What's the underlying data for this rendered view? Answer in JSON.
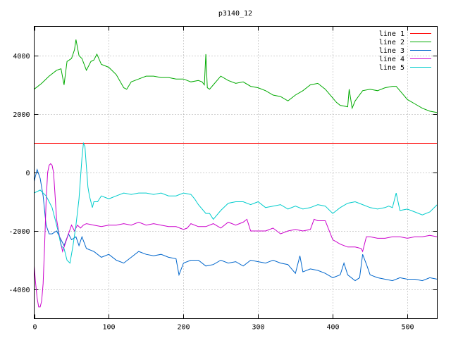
{
  "chart_data": {
    "type": "line",
    "title": "p3140_12",
    "xlabel": "",
    "ylabel": "",
    "xlim": [
      0,
      540
    ],
    "ylim": [
      -5000,
      5000
    ],
    "x_ticks": [
      0,
      100,
      200,
      300,
      400,
      500
    ],
    "y_ticks": [
      -4000,
      -2000,
      0,
      2000,
      4000
    ],
    "grid": true,
    "legend_position": "top-right",
    "series": [
      {
        "name": "line 1",
        "color": "#ff0000",
        "x": [
          0,
          540
        ],
        "y": [
          1000,
          1000
        ]
      },
      {
        "name": "line 2",
        "color": "#00aa00",
        "x": [
          0,
          10,
          20,
          30,
          36,
          40,
          44,
          50,
          54,
          56,
          60,
          64,
          70,
          76,
          80,
          84,
          90,
          100,
          110,
          120,
          124,
          130,
          140,
          150,
          160,
          170,
          180,
          190,
          200,
          210,
          220,
          225,
          228,
          230,
          232,
          235,
          240,
          250,
          260,
          270,
          280,
          290,
          300,
          310,
          320,
          330,
          340,
          350,
          360,
          370,
          380,
          390,
          400,
          405,
          410,
          420,
          422,
          426,
          430,
          440,
          450,
          460,
          470,
          480,
          485,
          490,
          500,
          510,
          520,
          530,
          540
        ],
        "y": [
          2850,
          3050,
          3300,
          3500,
          3550,
          3000,
          3800,
          3900,
          4200,
          4550,
          4000,
          3900,
          3500,
          3800,
          3850,
          4050,
          3700,
          3600,
          3350,
          2900,
          2850,
          3100,
          3200,
          3300,
          3300,
          3250,
          3250,
          3200,
          3200,
          3100,
          3150,
          3100,
          3000,
          4050,
          2900,
          2850,
          3000,
          3300,
          3150,
          3050,
          3100,
          2950,
          2900,
          2800,
          2650,
          2600,
          2450,
          2650,
          2800,
          3000,
          3050,
          2850,
          2550,
          2400,
          2300,
          2250,
          2850,
          2200,
          2450,
          2800,
          2850,
          2800,
          2900,
          2950,
          2950,
          2800,
          2500,
          2350,
          2200,
          2100,
          2050
        ]
      },
      {
        "name": "line 3",
        "color": "#0066cc",
        "x": [
          0,
          4,
          8,
          12,
          16,
          20,
          24,
          30,
          36,
          40,
          46,
          50,
          56,
          60,
          64,
          70,
          80,
          90,
          100,
          110,
          120,
          130,
          140,
          150,
          160,
          170,
          180,
          190,
          194,
          200,
          210,
          220,
          230,
          240,
          250,
          260,
          270,
          280,
          290,
          300,
          310,
          320,
          330,
          340,
          350,
          356,
          360,
          370,
          380,
          390,
          400,
          410,
          415,
          420,
          430,
          436,
          440,
          446,
          450,
          460,
          470,
          480,
          490,
          500,
          510,
          520,
          530,
          540
        ],
        "y": [
          -300,
          100,
          -200,
          -800,
          -1800,
          -2100,
          -2100,
          -2000,
          -2300,
          -2500,
          -2100,
          -2300,
          -2200,
          -2500,
          -2200,
          -2600,
          -2700,
          -2900,
          -2800,
          -3000,
          -3100,
          -2900,
          -2700,
          -2800,
          -2850,
          -2800,
          -2900,
          -2950,
          -3500,
          -3100,
          -3000,
          -3000,
          -3200,
          -3150,
          -3000,
          -3100,
          -3050,
          -3200,
          -3000,
          -3050,
          -3100,
          -3000,
          -3100,
          -3150,
          -3450,
          -2850,
          -3400,
          -3300,
          -3350,
          -3450,
          -3600,
          -3500,
          -3100,
          -3500,
          -3700,
          -3600,
          -2800,
          -3200,
          -3500,
          -3600,
          -3650,
          -3700,
          -3600,
          -3650,
          -3650,
          -3700,
          -3600,
          -3650
        ]
      },
      {
        "name": "line 4",
        "color": "#cc00cc",
        "x": [
          0,
          2,
          4,
          6,
          8,
          10,
          12,
          14,
          16,
          18,
          20,
          22,
          24,
          26,
          28,
          30,
          34,
          38,
          42,
          46,
          50,
          54,
          58,
          62,
          66,
          70,
          80,
          90,
          100,
          110,
          120,
          130,
          140,
          150,
          160,
          170,
          180,
          190,
          200,
          205,
          210,
          220,
          230,
          240,
          250,
          260,
          270,
          280,
          285,
          290,
          300,
          310,
          320,
          330,
          340,
          350,
          360,
          370,
          375,
          380,
          390,
          400,
          410,
          420,
          430,
          438,
          440,
          445,
          450,
          460,
          470,
          480,
          490,
          500,
          510,
          520,
          530,
          540
        ],
        "y": [
          -3200,
          -3800,
          -4300,
          -4600,
          -4600,
          -4400,
          -3800,
          -2500,
          -1000,
          0,
          250,
          300,
          250,
          0,
          -800,
          -1600,
          -2200,
          -2700,
          -2400,
          -2100,
          -1800,
          -2000,
          -1800,
          -1900,
          -1800,
          -1750,
          -1800,
          -1850,
          -1800,
          -1800,
          -1750,
          -1800,
          -1700,
          -1800,
          -1750,
          -1800,
          -1850,
          -1850,
          -1950,
          -1900,
          -1750,
          -1850,
          -1850,
          -1750,
          -1900,
          -1700,
          -1800,
          -1700,
          -1600,
          -2000,
          -2000,
          -2000,
          -1900,
          -2100,
          -2000,
          -1950,
          -2000,
          -1950,
          -1600,
          -1650,
          -1650,
          -2300,
          -2450,
          -2550,
          -2550,
          -2600,
          -2700,
          -2200,
          -2200,
          -2250,
          -2250,
          -2200,
          -2200,
          -2250,
          -2200,
          -2200,
          -2150,
          -2200
        ]
      },
      {
        "name": "line 5",
        "color": "#00cccc",
        "x": [
          0,
          4,
          8,
          12,
          16,
          20,
          24,
          28,
          32,
          36,
          40,
          44,
          48,
          52,
          56,
          60,
          62,
          64,
          66,
          68,
          70,
          72,
          74,
          76,
          78,
          80,
          85,
          90,
          100,
          110,
          120,
          130,
          140,
          150,
          160,
          170,
          180,
          190,
          200,
          210,
          215,
          220,
          230,
          235,
          240,
          250,
          260,
          270,
          280,
          290,
          300,
          310,
          320,
          330,
          340,
          350,
          360,
          370,
          380,
          390,
          400,
          410,
          420,
          430,
          440,
          450,
          460,
          470,
          475,
          480,
          485,
          490,
          500,
          510,
          520,
          530,
          540
        ],
        "y": [
          -700,
          -650,
          -600,
          -700,
          -800,
          -1000,
          -1200,
          -1600,
          -2000,
          -2500,
          -2600,
          -3000,
          -3100,
          -2500,
          -1800,
          -900,
          -200,
          500,
          1000,
          900,
          200,
          -500,
          -800,
          -1000,
          -1200,
          -1000,
          -1000,
          -800,
          -900,
          -800,
          -700,
          -750,
          -700,
          -700,
          -750,
          -700,
          -800,
          -800,
          -700,
          -750,
          -900,
          -1100,
          -1400,
          -1400,
          -1600,
          -1300,
          -1050,
          -1000,
          -1000,
          -1100,
          -1000,
          -1200,
          -1150,
          -1100,
          -1250,
          -1150,
          -1250,
          -1200,
          -1100,
          -1150,
          -1400,
          -1200,
          -1050,
          -1000,
          -1100,
          -1200,
          -1250,
          -1200,
          -1150,
          -1200,
          -700,
          -1300,
          -1250,
          -1350,
          -1450,
          -1350,
          -1100
        ]
      }
    ]
  }
}
